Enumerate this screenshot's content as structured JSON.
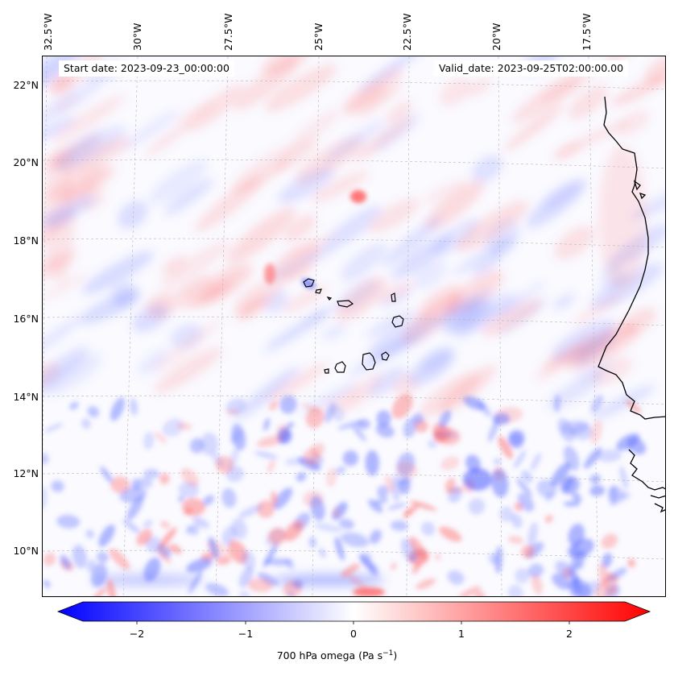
{
  "map": {
    "start_date": "Start date: 2023-09-23_00:00:00",
    "valid_date": "Valid_date: 2023-09-25T02:00:00.00",
    "lon_labels": [
      "32.5°W",
      "30°W",
      "27.5°W",
      "25°W",
      "22.5°W",
      "20°W",
      "17.5°W"
    ],
    "lat_labels": [
      "22°N",
      "20°N",
      "18°N",
      "16°N",
      "14°N",
      "12°N",
      "10°N"
    ],
    "colors": {
      "negative": "#0000ff",
      "zero": "#ffffff",
      "positive": "#ff0000",
      "coastline": "#000000"
    }
  },
  "colorbar": {
    "ticks": [
      "−2",
      "−1",
      "0",
      "1",
      "2"
    ],
    "label": "700 hPa omega (Pa s",
    "label_exponent": "−1",
    "label_suffix": ")"
  }
}
